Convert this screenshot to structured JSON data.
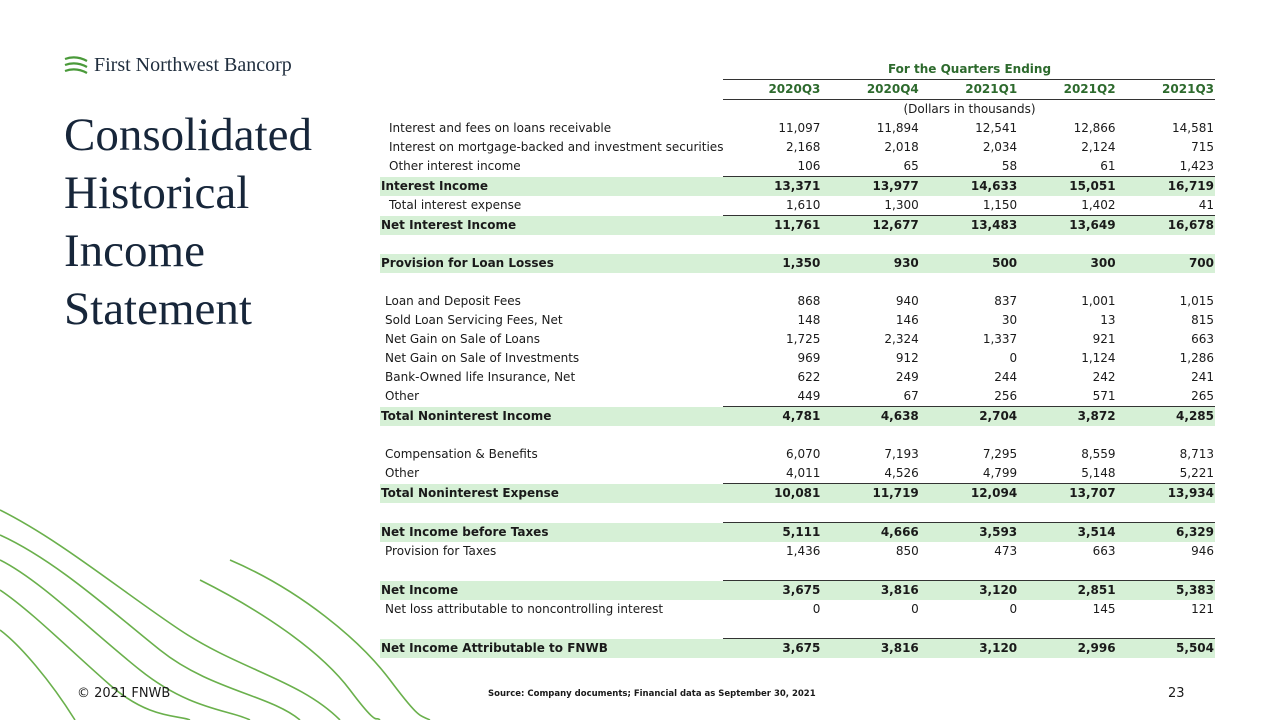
{
  "header": {
    "logo": "First Northwest Bancorp",
    "title_lines": [
      "Consolidated",
      "Historical",
      "Income",
      "Statement"
    ]
  },
  "table": {
    "caption": "For the Quarters Ending",
    "columns": [
      "2020Q3",
      "2020Q4",
      "2021Q1",
      "2021Q2",
      "2021Q3"
    ],
    "units": "(Dollars in thousands)",
    "sections": [
      {
        "rows": [
          {
            "label": "Interest and fees on loans receivable",
            "values": [
              "11,097",
              "11,894",
              "12,541",
              "12,866",
              "14,581"
            ],
            "indent": 2
          },
          {
            "label": "Interest on mortgage-backed and investment securities",
            "values": [
              "2,168",
              "2,018",
              "2,034",
              "2,124",
              "715"
            ],
            "indent": 2
          },
          {
            "label": "Other interest income",
            "values": [
              "106",
              "65",
              "58",
              "61",
              "1,423"
            ],
            "indent": 2
          },
          {
            "label": "Interest Income",
            "values": [
              "13,371",
              "13,977",
              "14,633",
              "15,051",
              "16,719"
            ],
            "total": true,
            "ruled": true
          },
          {
            "label": "Total interest expense",
            "values": [
              "1,610",
              "1,300",
              "1,150",
              "1,402",
              "41"
            ],
            "indent": 2
          },
          {
            "label": "Net Interest Income",
            "values": [
              "11,761",
              "12,677",
              "13,483",
              "13,649",
              "16,678"
            ],
            "total": true,
            "ruled": true
          }
        ]
      },
      {
        "rows": [
          {
            "label": "Provision for Loan Losses",
            "values": [
              "1,350",
              "930",
              "500",
              "300",
              "700"
            ],
            "total": true
          }
        ]
      },
      {
        "rows": [
          {
            "label": "Loan and Deposit Fees",
            "values": [
              "868",
              "940",
              "837",
              "1,001",
              "1,015"
            ],
            "indent": 1
          },
          {
            "label": "Sold Loan Servicing Fees, Net",
            "values": [
              "148",
              "146",
              "30",
              "13",
              "815"
            ],
            "indent": 1
          },
          {
            "label": "Net Gain on Sale of Loans",
            "values": [
              "1,725",
              "2,324",
              "1,337",
              "921",
              "663"
            ],
            "indent": 1
          },
          {
            "label": "Net Gain on Sale of Investments",
            "values": [
              "969",
              "912",
              "0",
              "1,124",
              "1,286"
            ],
            "indent": 1
          },
          {
            "label": "Bank-Owned life Insurance, Net",
            "values": [
              "622",
              "249",
              "244",
              "242",
              "241"
            ],
            "indent": 1
          },
          {
            "label": "Other",
            "values": [
              "449",
              "67",
              "256",
              "571",
              "265"
            ],
            "indent": 1
          },
          {
            "label": "Total Noninterest Income",
            "values": [
              "4,781",
              "4,638",
              "2,704",
              "3,872",
              "4,285"
            ],
            "total": true,
            "ruled": true
          }
        ]
      },
      {
        "rows": [
          {
            "label": "Compensation & Benefits",
            "values": [
              "6,070",
              "7,193",
              "7,295",
              "8,559",
              "8,713"
            ],
            "indent": 1
          },
          {
            "label": "Other",
            "values": [
              "4,011",
              "4,526",
              "4,799",
              "5,148",
              "5,221"
            ],
            "indent": 1
          },
          {
            "label": "Total Noninterest Expense",
            "values": [
              "10,081",
              "11,719",
              "12,094",
              "13,707",
              "13,934"
            ],
            "total": true,
            "ruled": true
          }
        ]
      },
      {
        "rows": [
          {
            "label": "Net Income before Taxes",
            "values": [
              "5,111",
              "4,666",
              "3,593",
              "3,514",
              "6,329"
            ],
            "total": true,
            "ruled": true
          },
          {
            "label": "Provision for Taxes",
            "values": [
              "1,436",
              "850",
              "473",
              "663",
              "946"
            ],
            "indent": 1
          }
        ]
      },
      {
        "rows": [
          {
            "label": "Net Income",
            "values": [
              "3,675",
              "3,816",
              "3,120",
              "2,851",
              "5,383"
            ],
            "total": true,
            "ruled": true
          },
          {
            "label": "Net loss attributable to noncontrolling interest",
            "values": [
              "0",
              "0",
              "0",
              "145",
              "121"
            ],
            "indent": 1
          }
        ]
      },
      {
        "rows": [
          {
            "label": "Net Income Attributable to FNWB",
            "values": [
              "3,675",
              "3,816",
              "3,120",
              "2,996",
              "5,504"
            ],
            "total": true,
            "ruled": true
          }
        ]
      }
    ]
  },
  "footer": {
    "copyright": "© 2021 FNWB",
    "source": "Source: Company documents; Financial data as September 30, 2021",
    "page": "23"
  }
}
